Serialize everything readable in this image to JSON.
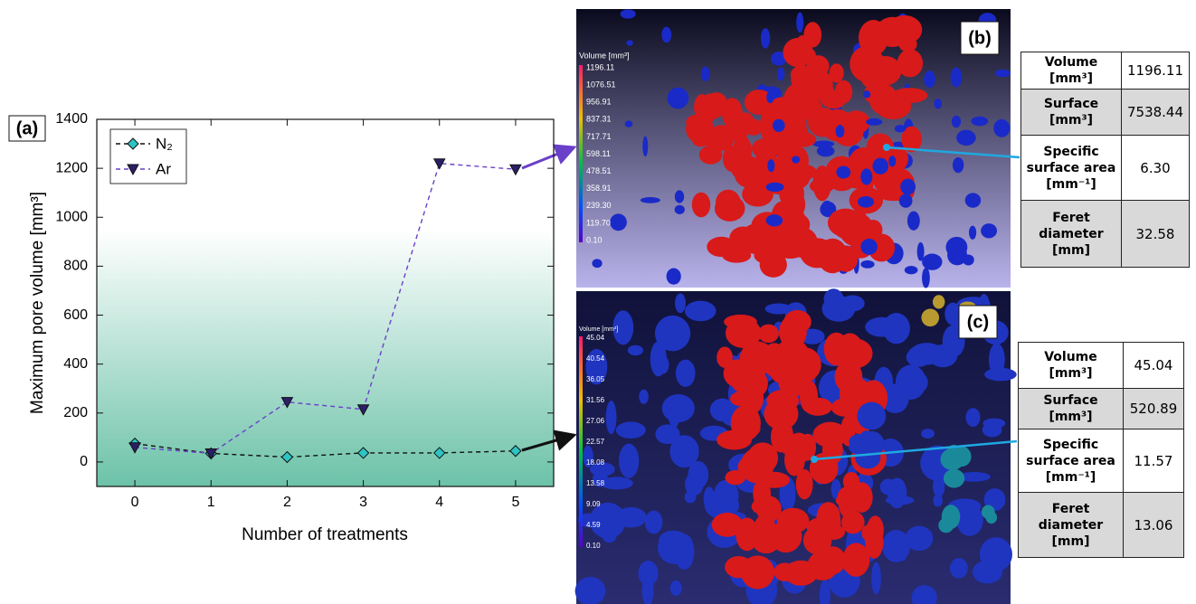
{
  "chart_data": {
    "type": "line",
    "panel_label": "(a)",
    "x_label": "Number of treatments",
    "y_label": "Maximum pore volume [mm³]",
    "x": [
      0,
      1,
      2,
      3,
      4,
      5
    ],
    "series": [
      {
        "name": "N₂",
        "color": "#111111",
        "marker": "diamond",
        "marker_color": "#2ec4c4",
        "values": [
          75,
          35,
          20,
          37,
          37,
          45
        ]
      },
      {
        "name": "Ar",
        "color": "#6a3fc9",
        "marker": "triangle-down",
        "marker_color": "#2a1f66",
        "values": [
          60,
          35,
          245,
          215,
          1220,
          1196
        ]
      }
    ],
    "xlim": [
      -0.5,
      5.5
    ],
    "xticks": [
      0,
      1,
      2,
      3,
      4,
      5
    ],
    "ylim": [
      -100,
      1400
    ],
    "yticks": [
      0,
      200,
      400,
      600,
      800,
      1000,
      1200,
      1400
    ],
    "legend": "upper left"
  },
  "panels": [
    {
      "label": "(b)",
      "colorbar": {
        "title": "Volume [mm³]",
        "labels": [
          "1196.11",
          "1076.51",
          "956.91",
          "837.31",
          "717.71",
          "598.11",
          "478.51",
          "358.91",
          "239.30",
          "119.70",
          "0.10"
        ]
      },
      "table": {
        "rows": [
          {
            "label": [
              "Volume",
              "[mm³]"
            ],
            "value": "1196.11"
          },
          {
            "label": [
              "Surface",
              "[mm³]"
            ],
            "value": "7538.44"
          },
          {
            "label": [
              "Specific",
              "surface area",
              "[mm⁻¹]"
            ],
            "value": "6.30"
          },
          {
            "label": [
              "Feret",
              "diameter",
              "[mm]"
            ],
            "value": "32.58"
          }
        ]
      }
    },
    {
      "label": "(c)",
      "colorbar": {
        "title": "Volume [mm³]",
        "labels": [
          "45.04",
          "40.54",
          "36.05",
          "31.56",
          "27.06",
          "22.57",
          "18.08",
          "13.58",
          "9.09",
          "4.59",
          "0.10"
        ]
      },
      "table": {
        "rows": [
          {
            "label": [
              "Volume",
              "[mm³]"
            ],
            "value": "45.04"
          },
          {
            "label": [
              "Surface",
              "[mm³]"
            ],
            "value": "520.89"
          },
          {
            "label": [
              "Specific",
              "surface area",
              "[mm⁻¹]"
            ],
            "value": "11.57"
          },
          {
            "label": [
              "Feret",
              "diameter",
              "[mm]"
            ],
            "value": "13.06"
          }
        ]
      }
    }
  ]
}
